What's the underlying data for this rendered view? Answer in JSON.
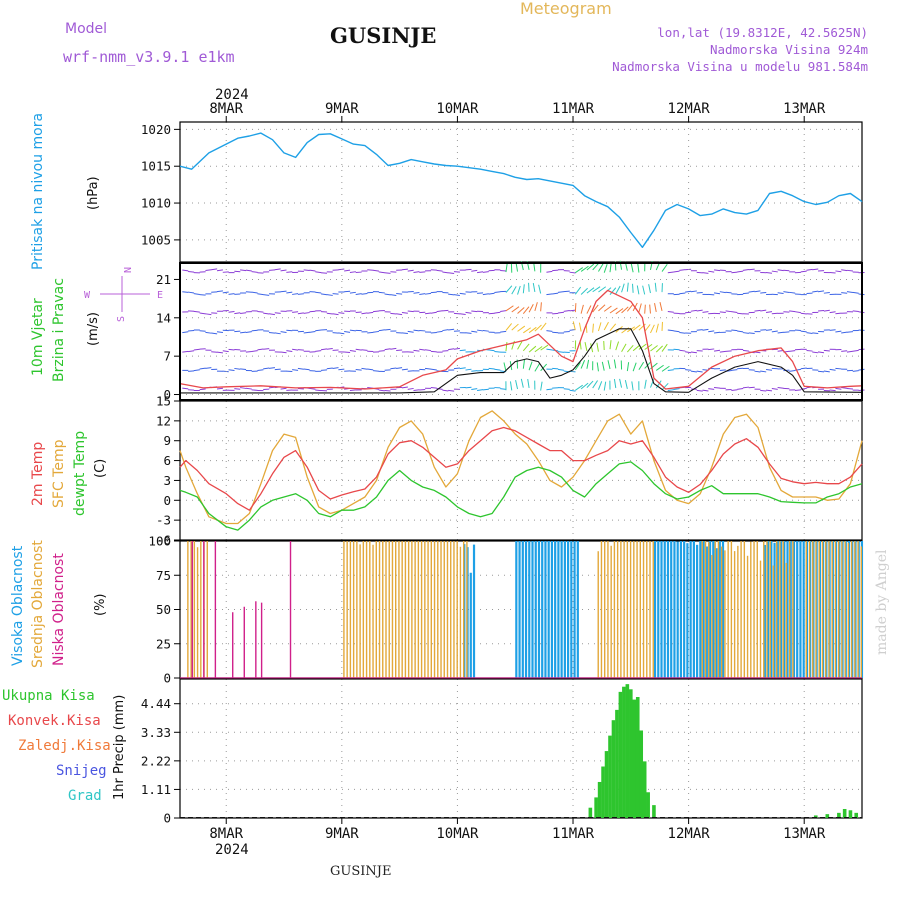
{
  "header": {
    "model_label": "Model",
    "model_name": "wrf-nmm_v3.9.1 e1km",
    "station": "GUSINJE",
    "product": "Meteogram",
    "coords": "lon,lat (19.8312E, 42.5625N)",
    "altitude": "Nadmorska Visina 924m",
    "model_altitude": "Nadmorska Visina u modelu 981.584m",
    "year": "2024",
    "footer_station": "GUSINJE",
    "credit": "made by Angel"
  },
  "days": [
    "8MAR",
    "9MAR",
    "10MAR",
    "11MAR",
    "12MAR",
    "13MAR"
  ],
  "colors": {
    "pressure": "#1ea0e6",
    "t2m": "#e8484b",
    "sfc": "#e3a83a",
    "dew": "#2ec52e",
    "high_cloud": "#1ea0e6",
    "mid_cloud": "#e3a83a",
    "low_cloud": "#d0208a",
    "precip_total": "#2ec52e",
    "wind_gust": "#e8484b",
    "wind_speed": "#111111"
  },
  "panels": {
    "pressure": {
      "label_line1": "Pritisak na nivou mora",
      "unit": "(hPa)"
    },
    "wind": {
      "label_line1": "10m Vjetar",
      "label_line2": "Brzina i Pravac",
      "unit": "(m/s)",
      "compass": {
        "n": "N",
        "s": "S",
        "e": "E",
        "w": "W"
      }
    },
    "temp": {
      "label_line1": "2m Temp",
      "label_line2": "SFC Temp",
      "label_line3": "dewpt Temp",
      "unit": "(C)"
    },
    "cloud": {
      "label_line1": "Visoka Oblacnost",
      "label_line2": "Srednja Oblacnost",
      "label_line3": "Niska Oblacnost",
      "unit": "(%)"
    },
    "precip": {
      "labels": [
        "Ukupna Kisa",
        "Konvek.Kisa",
        "Zaledj.Kisa",
        "Snijeg",
        "Grad"
      ],
      "unit": "1hr Precip (mm)"
    }
  },
  "chart_data": [
    {
      "type": "line",
      "series": [
        {
          "name": "Pritisak na nivou mora",
          "x": [
            7.6,
            7.7,
            7.85,
            8.0,
            8.1,
            8.2,
            8.3,
            8.4,
            8.5,
            8.6,
            8.7,
            8.8,
            8.9,
            9.0,
            9.1,
            9.2,
            9.3,
            9.4,
            9.5,
            9.6,
            9.7,
            9.8,
            9.9,
            10.0,
            10.1,
            10.2,
            10.3,
            10.4,
            10.5,
            10.6,
            10.7,
            10.8,
            10.9,
            11.0,
            11.1,
            11.2,
            11.3,
            11.4,
            11.5,
            11.6,
            11.7,
            11.8,
            11.9,
            12.0,
            12.1,
            12.2,
            12.3,
            12.4,
            12.5,
            12.6,
            12.7,
            12.8,
            12.9,
            13.0,
            13.1,
            13.2,
            13.3,
            13.4,
            13.5
          ],
          "values": [
            1015.0,
            1014.6,
            1016.8,
            1018.0,
            1018.8,
            1019.1,
            1019.5,
            1018.6,
            1016.8,
            1016.2,
            1018.2,
            1019.3,
            1019.4,
            1018.7,
            1018.0,
            1017.8,
            1016.6,
            1015.1,
            1015.4,
            1015.9,
            1015.6,
            1015.3,
            1015.1,
            1015.0,
            1014.8,
            1014.6,
            1014.3,
            1014.0,
            1013.5,
            1013.2,
            1013.3,
            1013.0,
            1012.7,
            1012.4,
            1011.0,
            1010.2,
            1009.5,
            1008.1,
            1006.0,
            1004.0,
            1006.3,
            1009.0,
            1009.8,
            1009.2,
            1008.3,
            1008.5,
            1009.2,
            1008.7,
            1008.5,
            1009.0,
            1011.3,
            1011.6,
            1011.0,
            1010.2,
            1009.8,
            1010.1,
            1011.0,
            1011.3,
            1010.2
          ]
        }
      ],
      "x_ticks": [
        "8MAR",
        "9MAR",
        "10MAR",
        "11MAR",
        "12MAR",
        "13MAR"
      ],
      "ylim": [
        1002,
        1021
      ],
      "yticks": [
        1005,
        1010,
        1015,
        1020
      ],
      "grid": true
    },
    {
      "type": "line",
      "series": [
        {
          "name": "gust",
          "x": [
            7.6,
            7.8,
            8.0,
            8.3,
            8.6,
            8.9,
            9.2,
            9.5,
            9.7,
            9.9,
            10.0,
            10.2,
            10.4,
            10.6,
            10.7,
            10.8,
            10.9,
            11.0,
            11.1,
            11.2,
            11.3,
            11.4,
            11.5,
            11.6,
            11.7,
            11.8,
            12.0,
            12.2,
            12.4,
            12.6,
            12.8,
            12.9,
            13.0,
            13.2,
            13.4,
            13.5
          ],
          "values": [
            2.0,
            1.2,
            1.4,
            1.6,
            1.2,
            1.3,
            1.0,
            1.4,
            3.5,
            4.5,
            6.5,
            8.0,
            9.0,
            10.0,
            11.0,
            9.0,
            7.0,
            6.0,
            12.0,
            17.0,
            19.0,
            18.0,
            17.0,
            14.0,
            3.0,
            1.0,
            1.5,
            5.0,
            7.0,
            8.0,
            8.5,
            6.0,
            1.5,
            1.2,
            1.5,
            1.6
          ]
        },
        {
          "name": "speed",
          "x": [
            7.6,
            8.0,
            8.5,
            9.0,
            9.5,
            9.8,
            10.0,
            10.2,
            10.4,
            10.5,
            10.6,
            10.7,
            10.8,
            10.9,
            11.0,
            11.1,
            11.2,
            11.3,
            11.4,
            11.5,
            11.6,
            11.7,
            11.8,
            12.0,
            12.2,
            12.4,
            12.6,
            12.8,
            12.9,
            13.0,
            13.5
          ],
          "values": [
            0.3,
            0.3,
            0.3,
            0.3,
            0.3,
            0.5,
            3.5,
            4.0,
            4.0,
            6.0,
            6.5,
            6.0,
            3.0,
            3.5,
            4.5,
            7.0,
            10.0,
            11.0,
            12.0,
            12.0,
            8.0,
            2.0,
            0.5,
            0.4,
            3.0,
            5.0,
            6.0,
            5.0,
            3.5,
            0.5,
            0.4
          ]
        }
      ],
      "x_ticks": [
        "8MAR",
        "9MAR",
        "10MAR",
        "11MAR",
        "12MAR",
        "13MAR"
      ],
      "ylim": [
        -1,
        24
      ],
      "yticks": [
        0,
        7,
        14,
        21
      ],
      "grid": true
    },
    {
      "type": "line",
      "series": [
        {
          "name": "2m Temp",
          "x": [
            7.6,
            7.65,
            7.75,
            7.85,
            8.0,
            8.1,
            8.2,
            8.3,
            8.4,
            8.5,
            8.6,
            8.7,
            8.8,
            8.9,
            9.0,
            9.1,
            9.2,
            9.3,
            9.4,
            9.5,
            9.6,
            9.7,
            9.8,
            9.9,
            10.0,
            10.1,
            10.2,
            10.3,
            10.4,
            10.5,
            10.6,
            10.7,
            10.8,
            10.9,
            11.0,
            11.1,
            11.2,
            11.3,
            11.4,
            11.5,
            11.6,
            11.7,
            11.8,
            11.9,
            12.0,
            12.1,
            12.2,
            12.3,
            12.4,
            12.5,
            12.6,
            12.7,
            12.8,
            12.9,
            13.0,
            13.1,
            13.2,
            13.3,
            13.4,
            13.5
          ],
          "values": [
            5.0,
            6.0,
            4.5,
            2.5,
            1.0,
            -0.5,
            -1.5,
            1.0,
            4.0,
            6.5,
            7.5,
            5.0,
            1.5,
            0.2,
            0.8,
            1.3,
            1.7,
            3.5,
            7.0,
            8.7,
            9.0,
            8.0,
            6.5,
            5.0,
            5.5,
            7.5,
            9.0,
            10.5,
            11.0,
            10.5,
            9.5,
            8.5,
            7.5,
            7.5,
            6.0,
            6.0,
            6.8,
            7.5,
            9.0,
            8.5,
            9.0,
            6.5,
            3.5,
            2.0,
            1.2,
            2.4,
            4.5,
            7.0,
            8.5,
            9.3,
            8.0,
            5.5,
            3.3,
            2.8,
            2.5,
            2.7,
            2.5,
            2.5,
            3.5,
            5.5
          ]
        },
        {
          "name": "SFC Temp",
          "x": [
            7.6,
            7.65,
            7.75,
            7.85,
            8.0,
            8.1,
            8.2,
            8.3,
            8.4,
            8.5,
            8.6,
            8.7,
            8.8,
            8.9,
            9.0,
            9.1,
            9.2,
            9.3,
            9.4,
            9.5,
            9.6,
            9.7,
            9.8,
            9.9,
            10.0,
            10.1,
            10.2,
            10.3,
            10.4,
            10.5,
            10.6,
            10.7,
            10.8,
            10.9,
            11.0,
            11.1,
            11.2,
            11.3,
            11.4,
            11.5,
            11.6,
            11.7,
            11.8,
            11.9,
            12.0,
            12.1,
            12.2,
            12.3,
            12.4,
            12.5,
            12.6,
            12.7,
            12.8,
            12.9,
            13.0,
            13.1,
            13.2,
            13.3,
            13.4,
            13.5
          ],
          "values": [
            7.5,
            5.0,
            1.0,
            -2.5,
            -3.5,
            -3.5,
            -2.0,
            2.5,
            7.5,
            10.0,
            9.5,
            3.5,
            -1.0,
            -2.0,
            -1.5,
            -0.5,
            0.5,
            3.0,
            8.0,
            11.0,
            12.0,
            10.0,
            5.0,
            2.0,
            4.0,
            9.0,
            12.5,
            13.5,
            12.0,
            10.0,
            8.5,
            6.0,
            3.0,
            2.0,
            3.5,
            6.0,
            9.0,
            12.0,
            13.0,
            10.0,
            12.0,
            6.0,
            1.5,
            0.0,
            -0.5,
            1.0,
            5.0,
            10.0,
            12.5,
            13.0,
            11.0,
            5.0,
            1.5,
            0.5,
            0.5,
            0.5,
            0.0,
            0.2,
            2.5,
            9.0
          ]
        },
        {
          "name": "dewpt Temp",
          "x": [
            7.6,
            7.65,
            7.75,
            7.85,
            8.0,
            8.1,
            8.2,
            8.3,
            8.4,
            8.5,
            8.6,
            8.7,
            8.8,
            8.9,
            9.0,
            9.1,
            9.2,
            9.3,
            9.4,
            9.5,
            9.6,
            9.7,
            9.8,
            9.9,
            10.0,
            10.1,
            10.2,
            10.3,
            10.4,
            10.5,
            10.6,
            10.7,
            10.8,
            10.9,
            11.0,
            11.1,
            11.2,
            11.3,
            11.4,
            11.5,
            11.6,
            11.7,
            11.8,
            11.9,
            12.0,
            12.1,
            12.2,
            12.3,
            12.4,
            12.5,
            12.6,
            12.7,
            12.8,
            12.9,
            13.0,
            13.1,
            13.2,
            13.3,
            13.4,
            13.5
          ],
          "values": [
            1.5,
            1.2,
            0.5,
            -2.0,
            -4.0,
            -4.5,
            -3.0,
            -1.0,
            0.0,
            0.5,
            1.0,
            0.0,
            -2.0,
            -2.5,
            -1.5,
            -1.5,
            -1.0,
            0.5,
            3.0,
            4.5,
            3.0,
            2.0,
            1.5,
            0.5,
            -1.0,
            -2.0,
            -2.5,
            -2.0,
            0.5,
            3.5,
            4.5,
            5.0,
            4.5,
            3.5,
            1.5,
            0.5,
            2.5,
            4.0,
            5.5,
            5.8,
            4.5,
            2.5,
            1.0,
            0.2,
            0.5,
            1.5,
            2.2,
            1.0,
            1.0,
            1.0,
            1.0,
            0.5,
            -0.2,
            -0.3,
            -0.4,
            -0.4,
            0.5,
            1.0,
            2.0,
            2.5
          ]
        }
      ],
      "x_ticks": [
        "8MAR",
        "9MAR",
        "10MAR",
        "11MAR",
        "12MAR",
        "13MAR"
      ],
      "ylim": [
        -6,
        15
      ],
      "yticks": [
        -6,
        -3,
        0,
        3,
        6,
        9,
        12,
        15
      ],
      "grid": true
    },
    {
      "type": "bar",
      "series": [
        {
          "name": "Visoka Oblacnost",
          "segments": [
            [
              10.05,
              10.15
            ],
            [
              10.5,
              11.05
            ],
            [
              11.7,
              12.3
            ],
            [
              12.65,
              13.5
            ]
          ],
          "values": [
            50,
            100,
            75,
            90
          ]
        },
        {
          "name": "Srednja Oblacnost",
          "segments": [
            [
              7.65,
              7.85
            ],
            [
              9.0,
              10.1
            ],
            [
              11.2,
              11.7
            ],
            [
              12.1,
              12.9
            ],
            [
              13.0,
              13.5
            ]
          ],
          "values": [
            100,
            100,
            95,
            75,
            100
          ]
        },
        {
          "name": "Niska Oblacnost",
          "x": [
            7.7,
            7.8,
            7.9,
            8.05,
            8.15,
            8.25,
            8.3,
            8.55
          ],
          "values": [
            100,
            100,
            100,
            48,
            52,
            56,
            55,
            100
          ]
        }
      ],
      "x_ticks": [
        "8MAR",
        "9MAR",
        "10MAR",
        "11MAR",
        "12MAR",
        "13MAR"
      ],
      "ylim": [
        0,
        100
      ],
      "yticks": [
        0,
        25,
        50,
        75,
        100
      ],
      "grid": true
    },
    {
      "type": "bar",
      "series": [
        {
          "name": "Ukupna Kisa",
          "x": [
            11.15,
            11.2,
            11.23,
            11.26,
            11.29,
            11.32,
            11.35,
            11.38,
            11.41,
            11.44,
            11.47,
            11.5,
            11.53,
            11.56,
            11.59,
            11.62,
            11.65,
            11.7,
            13.1,
            13.2,
            13.3,
            13.35,
            13.4,
            13.45
          ],
          "values": [
            0.4,
            0.8,
            1.4,
            2.0,
            2.6,
            3.2,
            3.8,
            4.2,
            4.9,
            5.1,
            5.2,
            5.0,
            4.6,
            4.7,
            3.4,
            2.2,
            1.0,
            0.5,
            0.1,
            0.15,
            0.2,
            0.35,
            0.3,
            0.2
          ]
        }
      ],
      "x_ticks": [
        "8MAR",
        "9MAR",
        "10MAR",
        "11MAR",
        "12MAR",
        "13MAR"
      ],
      "ylim": [
        0,
        5.4
      ],
      "yticks": [
        "0",
        "1.11",
        "2.22",
        "3.33",
        "4.44"
      ],
      "grid": true
    }
  ]
}
